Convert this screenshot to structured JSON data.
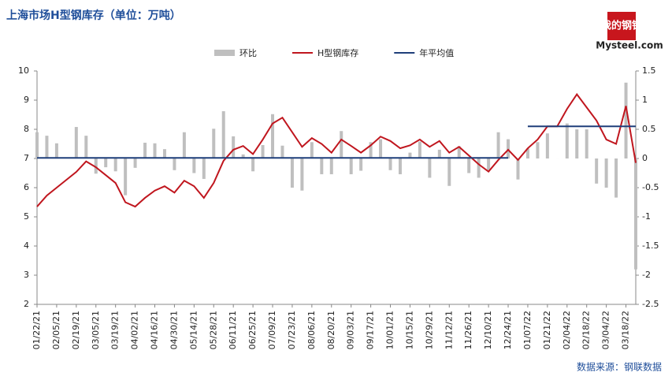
{
  "chart_data": {
    "type": "bar-line",
    "title": "上海市场H型钢库存（单位：万吨）",
    "logo": "我的钢铁",
    "logo_sub": "Mysteel.com",
    "source": "数据来源：钢联数据",
    "categories": [
      "01/22/21",
      null,
      "02/05/21",
      null,
      "02/19/21",
      null,
      "03/05/21",
      null,
      "03/19/21",
      null,
      "04/02/21",
      null,
      "04/16/21",
      null,
      "04/30/21",
      null,
      "05/14/21",
      null,
      "05/28/21",
      null,
      "06/11/21",
      null,
      "06/25/21",
      null,
      "07/09/21",
      null,
      "07/23/21",
      null,
      "08/06/21",
      null,
      "08/20/21",
      null,
      "09/03/21",
      null,
      "09/17/21",
      null,
      "10/01/21",
      null,
      "10/15/21",
      null,
      "10/29/21",
      null,
      "11/12/21",
      null,
      "11/26/21",
      null,
      "12/10/21",
      null,
      "12/24/21",
      null,
      "01/07/22",
      null,
      "01/21/22",
      null,
      "02/04/22",
      null,
      "02/18/22",
      null,
      "03/04/22",
      null,
      "03/18/22",
      null
    ],
    "ylim": [
      2,
      10
    ],
    "yticks": [
      2,
      3,
      4,
      5,
      6,
      7,
      8,
      9,
      10
    ],
    "y2lim": [
      -2.5,
      1.5
    ],
    "y2ticks": [
      -2.5,
      -2,
      -1.5,
      -1,
      -0.5,
      0,
      0.5,
      1,
      1.5
    ],
    "series": [
      {
        "name": "环比",
        "kind": "bar",
        "axis": "y2",
        "color": "#bfbfbf",
        "values": [
          0.45,
          0.39,
          0.26,
          0,
          0.54,
          0.39,
          -0.26,
          -0.15,
          -0.22,
          -0.63,
          -0.16,
          0.27,
          0.26,
          0.16,
          -0.2,
          0.45,
          -0.25,
          -0.35,
          0.51,
          0.81,
          0.38,
          0.07,
          -0.22,
          0.23,
          0.76,
          0.22,
          -0.5,
          -0.55,
          0.28,
          -0.27,
          -0.27,
          0.47,
          -0.27,
          -0.21,
          0.28,
          0.33,
          -0.2,
          -0.27,
          0.1,
          0.29,
          -0.33,
          0.15,
          -0.47,
          0.21,
          -0.25,
          -0.33,
          -0.2,
          0.45,
          0.33,
          -0.36,
          0.17,
          0.28,
          0.43,
          0,
          0.6,
          0.5,
          0.5,
          -0.43,
          -0.5,
          -0.67,
          1.3,
          -1.9
        ]
      },
      {
        "name": "H型钢库存",
        "kind": "line",
        "color": "#c0161e",
        "values": [
          5.35,
          5.73,
          6.0,
          6.27,
          6.54,
          6.9,
          6.7,
          6.43,
          6.16,
          5.5,
          5.35,
          5.65,
          5.9,
          6.05,
          5.83,
          6.24,
          6.05,
          5.65,
          6.16,
          6.92,
          7.3,
          7.43,
          7.15,
          7.65,
          8.2,
          8.4,
          7.9,
          7.4,
          7.7,
          7.5,
          7.2,
          7.65,
          7.43,
          7.2,
          7.45,
          7.75,
          7.6,
          7.35,
          7.45,
          7.65,
          7.4,
          7.6,
          7.2,
          7.4,
          7.1,
          6.8,
          6.55,
          6.95,
          7.3,
          6.95,
          7.35,
          7.65,
          8.1,
          8.1,
          8.7,
          9.2,
          8.75,
          8.3,
          7.65,
          7.5,
          8.8,
          6.85
        ]
      },
      {
        "name": "年平均值",
        "kind": "line",
        "color": "#1f3f7a",
        "values": [
          7.02,
          7.02,
          7.02,
          7.02,
          7.02,
          7.02,
          7.02,
          7.02,
          7.02,
          7.02,
          7.02,
          7.02,
          7.02,
          7.02,
          7.02,
          7.02,
          7.02,
          7.02,
          7.02,
          7.02,
          7.02,
          7.02,
          7.02,
          7.02,
          7.02,
          7.02,
          7.02,
          7.02,
          7.02,
          7.02,
          7.02,
          7.02,
          7.02,
          7.02,
          7.02,
          7.02,
          7.02,
          7.02,
          7.02,
          7.02,
          7.02,
          7.02,
          7.02,
          7.02,
          7.02,
          7.02,
          7.02,
          7.02,
          7.02,
          null,
          8.1,
          8.1,
          8.1,
          8.1,
          8.1,
          8.1,
          8.1,
          8.1,
          8.1,
          8.1,
          8.1,
          8.1
        ]
      }
    ]
  }
}
